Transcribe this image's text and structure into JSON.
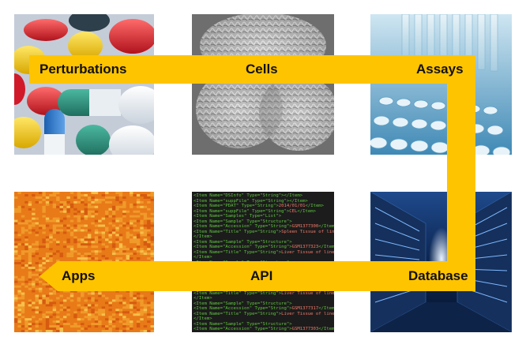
{
  "labels": {
    "perturbations": "Perturbations",
    "cells": "Cells",
    "assays": "Assays",
    "apps": "Apps",
    "api": "API",
    "database": "Database"
  },
  "colors": {
    "arrow": "#ffc400",
    "label_text": "#111111"
  },
  "code_lines": [
    [
      "<Item Name=\"DSInfo\" Type=\"String\">",
      "",
      "</Item>"
    ],
    [
      "<Item Name=\"suppFile\" Type=\"String\">",
      "",
      "</Item>"
    ],
    [
      "<Item Name=\"PDAT\" Type=\"String\">",
      "2014/01/01",
      "</Item>"
    ],
    [
      "<Item Name=\"suppFile\" Type=\"String\">",
      "CEL",
      "</Item>"
    ],
    [
      "<Item Name=\"Samples\" Type=\"List\">",
      "",
      ""
    ],
    [
      "  <Item Name=\"Sample\" Type=\"Structure\">",
      "",
      ""
    ],
    [
      "    <Item Name=\"Accession\" Type=\"String\">",
      "GSM1377300",
      "</Item>"
    ],
    [
      "    <Item Name=\"Title\" Type=\"String\">",
      "Spleen Tissue of line 13140X2015",
      "</Item>"
    ],
    [
      "  </Item>",
      "",
      ""
    ],
    [
      "  <Item Name=\"Sample\" Type=\"Structure\">",
      "",
      ""
    ],
    [
      "    <Item Name=\"Accession\" Type=\"String\">",
      "GSM1377323",
      "</Item>"
    ],
    [
      "    <Item Name=\"Title\" Type=\"String\">",
      "Liver Tissue of line 15156x1566",
      "</Item>"
    ],
    [
      "  </Item>",
      "",
      ""
    ],
    [
      "  <Item Name=\"Sample\" Type=\"Structure\">",
      "",
      ""
    ],
    [
      "    <Item Name=\"Accession\" Type=\"String\">",
      "GSM1377283",
      "</Item>"
    ],
    [
      "    <Item Name=\"Title\" Type=\"String\">",
      "Liver Tissue of line 15156x1566",
      "</Item>"
    ],
    [
      "  </Item>",
      "",
      ""
    ],
    [
      "  <Item Name=\"Sample\" Type=\"Structure\">",
      "",
      ""
    ],
    [
      "    <Item Name=\"Accession\" Type=\"String\">",
      "GSM1377320",
      "</Item>"
    ],
    [
      "    <Item Name=\"Title\" Type=\"String\">",
      "Liver Tissue of line 15156X1566",
      "</Item>"
    ],
    [
      "  </Item>",
      "",
      ""
    ],
    [
      "  <Item Name=\"Sample\" Type=\"Structure\">",
      "",
      ""
    ],
    [
      "    <Item Name=\"Accession\" Type=\"String\">",
      "GSM1377317",
      "</Item>"
    ],
    [
      "    <Item Name=\"Title\" Type=\"String\">",
      "Liver Tissue of line 15156x1566",
      "</Item>"
    ],
    [
      "  </Item>",
      "",
      ""
    ],
    [
      "  <Item Name=\"Sample\" Type=\"Structure\">",
      "",
      ""
    ],
    [
      "    <Item Name=\"Accession\" Type=\"String\">",
      "GSM1377303",
      "</Item>"
    ]
  ]
}
